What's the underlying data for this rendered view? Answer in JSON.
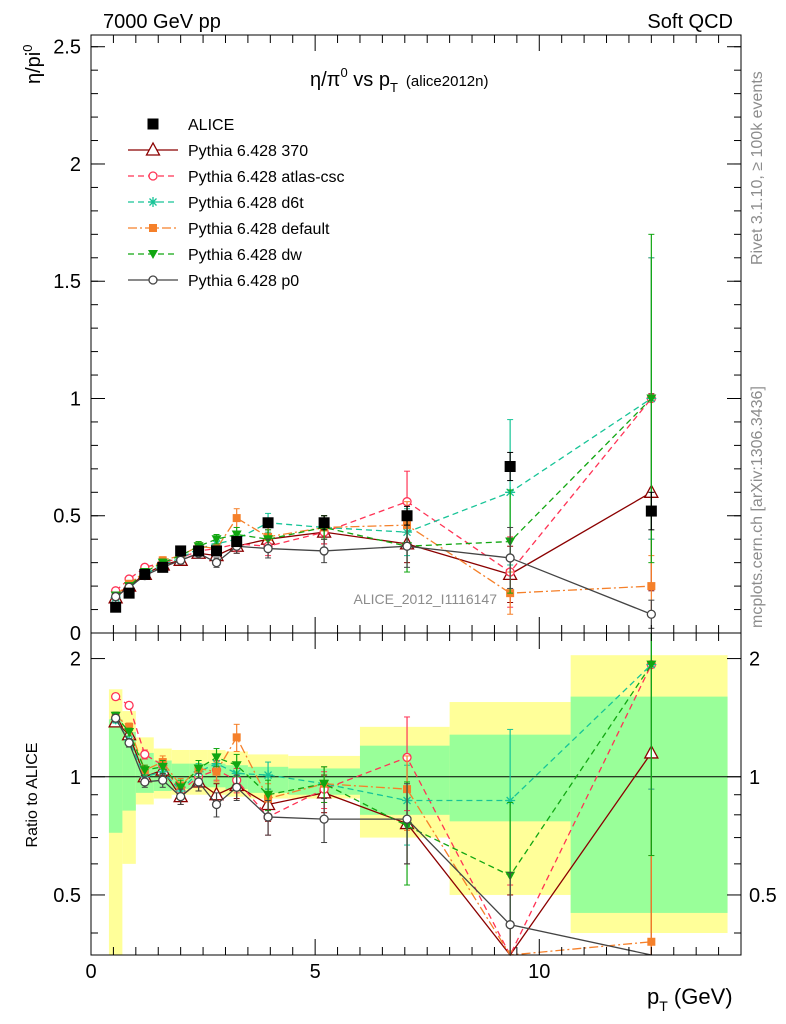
{
  "header": {
    "left": "7000 GeV pp",
    "right": "Soft QCD"
  },
  "title": {
    "main": "η/π",
    "sup": "0",
    "mid": " vs p",
    "sub": "T",
    "tag": "(alice2012n)"
  },
  "side": {
    "rivet": "Rivet 3.1.10, ≥ 100k events",
    "source": "mcplots.cern.ch [arXiv:1306.3436]"
  },
  "watermark": "ALICE_2012_I1116147",
  "axes": {
    "main_ylabel": "η/pi",
    "main_ylabel_sup": "0",
    "ratio_ylabel": "Ratio to ALICE",
    "xlabel_main": "p",
    "xlabel_sub": "T",
    "xlabel_unit": " (GeV)",
    "main_yticks": [
      "0",
      "0.5",
      "1",
      "1.5",
      "2",
      "2.5"
    ],
    "ratio_yticks": [
      "0.5",
      "1",
      "2"
    ],
    "xticks": [
      "0",
      "5",
      "10"
    ]
  },
  "colors": {
    "ALICE": "#000000",
    "370": "#8b0000",
    "atlas-csc": "#ff3355",
    "d6t": "#17c497",
    "default": "#f5802a",
    "dw": "#11a611",
    "p0": "#444444",
    "band_yellow": "#ffff99",
    "band_green": "#99ff99"
  },
  "chart_data": {
    "type": "line",
    "xlim": [
      0,
      14.5
    ],
    "main_ylim": [
      0,
      2.55
    ],
    "ratio_ylim": [
      0.3516,
      2.3235
    ],
    "ratio_scale": "log",
    "grid": false,
    "legend_placement": "top-left",
    "x": [
      0.55,
      0.85,
      1.2,
      1.6,
      2.0,
      2.4,
      2.8,
      3.25,
      3.95,
      5.2,
      7.05,
      9.35,
      12.5
    ],
    "series": [
      {
        "name": "ALICE",
        "key": "ALICE",
        "marker": "square",
        "dash": "",
        "values": [
          0.11,
          0.17,
          0.25,
          0.28,
          0.35,
          0.35,
          0.35,
          0.39,
          0.47,
          0.47,
          0.5,
          0.71,
          0.52
        ],
        "errors": [
          0.01,
          0.01,
          0.01,
          0.01,
          0.01,
          0.01,
          0.01,
          0.02,
          0.02,
          0.03,
          0.04,
          0.06,
          0.08
        ]
      },
      {
        "name": "Pythia 6.428 370",
        "key": "370",
        "marker": "triangle-open",
        "dash": "",
        "values": [
          0.15,
          0.2,
          0.25,
          0.29,
          0.31,
          0.34,
          0.33,
          0.37,
          0.4,
          0.43,
          0.38,
          0.25,
          0.6
        ],
        "errors": [
          0.01,
          0.01,
          0.01,
          0.015,
          0.015,
          0.02,
          0.02,
          0.03,
          0.04,
          0.05,
          0.08,
          0.12,
          0.42
        ]
      },
      {
        "name": "Pythia 6.428 atlas-csc",
        "key": "atlas-csc",
        "marker": "circle-open",
        "dash": "6,4",
        "values": [
          0.18,
          0.23,
          0.28,
          0.3,
          0.32,
          0.35,
          0.36,
          0.38,
          0.37,
          0.43,
          0.56,
          0.26,
          1.0
        ],
        "errors": [
          0.01,
          0.01,
          0.01,
          0.015,
          0.015,
          0.02,
          0.02,
          0.03,
          0.04,
          0.05,
          0.13,
          0.15,
          0.6
        ]
      },
      {
        "name": "Pythia 6.428 d6t",
        "key": "d6t",
        "marker": "star",
        "dash": "6,4",
        "values": [
          0.15,
          0.19,
          0.25,
          0.29,
          0.32,
          0.36,
          0.38,
          0.4,
          0.47,
          0.45,
          0.43,
          0.6,
          1.0
        ],
        "errors": [
          0.01,
          0.01,
          0.01,
          0.015,
          0.015,
          0.02,
          0.02,
          0.03,
          0.04,
          0.05,
          0.1,
          0.31,
          0.6
        ]
      },
      {
        "name": "Pythia 6.428 default",
        "key": "default",
        "marker": "square-filled",
        "dash": "9,3,2,3",
        "values": [
          0.16,
          0.21,
          0.26,
          0.31,
          0.33,
          0.37,
          0.36,
          0.49,
          0.41,
          0.45,
          0.46,
          0.17,
          0.2
        ],
        "errors": [
          0.01,
          0.01,
          0.01,
          0.015,
          0.015,
          0.02,
          0.02,
          0.04,
          0.04,
          0.05,
          0.1,
          0.09,
          0.13
        ]
      },
      {
        "name": "Pythia 6.428 dw",
        "key": "dw",
        "marker": "triangle-down",
        "dash": "6,4",
        "values": [
          0.16,
          0.2,
          0.26,
          0.3,
          0.33,
          0.37,
          0.4,
          0.42,
          0.4,
          0.45,
          0.37,
          0.39,
          1.0
        ],
        "errors": [
          0.01,
          0.01,
          0.01,
          0.015,
          0.015,
          0.02,
          0.02,
          0.03,
          0.04,
          0.05,
          0.11,
          0.22,
          0.7
        ]
      },
      {
        "name": "Pythia 6.428 p0",
        "key": "p0",
        "marker": "circle-open",
        "dash": "",
        "values": [
          0.155,
          0.195,
          0.245,
          0.28,
          0.31,
          0.34,
          0.3,
          0.37,
          0.36,
          0.35,
          0.37,
          0.32,
          0.08
        ],
        "errors": [
          0.01,
          0.01,
          0.01,
          0.015,
          0.015,
          0.02,
          0.02,
          0.03,
          0.04,
          0.05,
          0.09,
          0.13,
          0.06
        ]
      }
    ],
    "ratio_series": [
      {
        "key": "370",
        "values": [
          1.38,
          1.28,
          1.0,
          1.04,
          0.89,
          0.97,
          0.9,
          0.95,
          0.85,
          0.91,
          0.76,
          0.3,
          1.15
        ],
        "errors": [
          0.03,
          0.03,
          0.03,
          0.04,
          0.04,
          0.05,
          0.06,
          0.07,
          0.08,
          0.1,
          0.16,
          0.2,
          0.8
        ]
      },
      {
        "key": "atlas-csc",
        "values": [
          1.6,
          1.52,
          1.14,
          1.07,
          0.92,
          1.0,
          1.04,
          0.98,
          0.79,
          0.93,
          1.12,
          0.33,
          1.93
        ],
        "errors": [
          0.03,
          0.03,
          0.03,
          0.04,
          0.04,
          0.05,
          0.06,
          0.07,
          0.08,
          0.1,
          0.3,
          0.2,
          1.0
        ]
      },
      {
        "key": "d6t",
        "values": [
          1.4,
          1.24,
          1.0,
          1.03,
          0.92,
          1.03,
          1.08,
          1.02,
          1.01,
          0.96,
          0.87,
          0.87,
          1.93
        ],
        "errors": [
          0.03,
          0.03,
          0.03,
          0.04,
          0.04,
          0.05,
          0.06,
          0.07,
          0.08,
          0.1,
          0.2,
          0.45,
          1.0
        ]
      },
      {
        "key": "default",
        "values": [
          1.43,
          1.34,
          1.04,
          1.09,
          0.95,
          1.05,
          1.03,
          1.26,
          0.88,
          0.96,
          0.93,
          0.24,
          0.38
        ],
        "errors": [
          0.03,
          0.03,
          0.03,
          0.04,
          0.04,
          0.05,
          0.06,
          0.1,
          0.08,
          0.1,
          0.2,
          0.12,
          0.25
        ]
      },
      {
        "key": "dw",
        "values": [
          1.43,
          1.3,
          1.04,
          1.06,
          0.94,
          1.05,
          1.12,
          1.07,
          0.9,
          0.96,
          0.75,
          0.56,
          1.93
        ],
        "errors": [
          0.03,
          0.03,
          0.03,
          0.04,
          0.04,
          0.05,
          0.06,
          0.07,
          0.08,
          0.1,
          0.22,
          0.3,
          1.3
        ]
      },
      {
        "key": "p0",
        "values": [
          1.41,
          1.22,
          0.97,
          0.98,
          0.89,
          0.97,
          0.85,
          0.94,
          0.79,
          0.78,
          0.78,
          0.42,
          0.16
        ],
        "errors": [
          0.03,
          0.03,
          0.03,
          0.04,
          0.04,
          0.05,
          0.06,
          0.07,
          0.08,
          0.1,
          0.18,
          0.15,
          0.15
        ]
      }
    ],
    "ratio_bands": {
      "x_edges": [
        0.4,
        0.7,
        1.0,
        1.4,
        1.8,
        2.2,
        2.6,
        3.0,
        3.5,
        4.4,
        6.0,
        8.0,
        10.7,
        14.2
      ],
      "yellow": [
        [
          0.3516,
          1.67
        ],
        [
          0.6,
          1.47
        ],
        [
          0.85,
          1.26
        ],
        [
          0.88,
          1.18
        ],
        [
          0.9,
          1.17
        ],
        [
          0.9,
          1.17
        ],
        [
          0.9,
          1.17
        ],
        [
          0.89,
          1.16
        ],
        [
          0.88,
          1.14
        ],
        [
          0.88,
          1.13
        ],
        [
          0.7,
          1.34
        ],
        [
          0.5,
          1.55
        ],
        [
          0.4,
          2.04
        ]
      ],
      "green": [
        [
          0.72,
          1.4
        ],
        [
          0.82,
          1.3
        ],
        [
          0.91,
          1.15
        ],
        [
          0.92,
          1.1
        ],
        [
          0.93,
          1.08
        ],
        [
          0.94,
          1.08
        ],
        [
          0.94,
          1.08
        ],
        [
          0.93,
          1.07
        ],
        [
          0.91,
          1.06
        ],
        [
          0.9,
          1.05
        ],
        [
          0.8,
          1.2
        ],
        [
          0.77,
          1.28
        ],
        [
          0.45,
          1.6
        ]
      ]
    }
  }
}
